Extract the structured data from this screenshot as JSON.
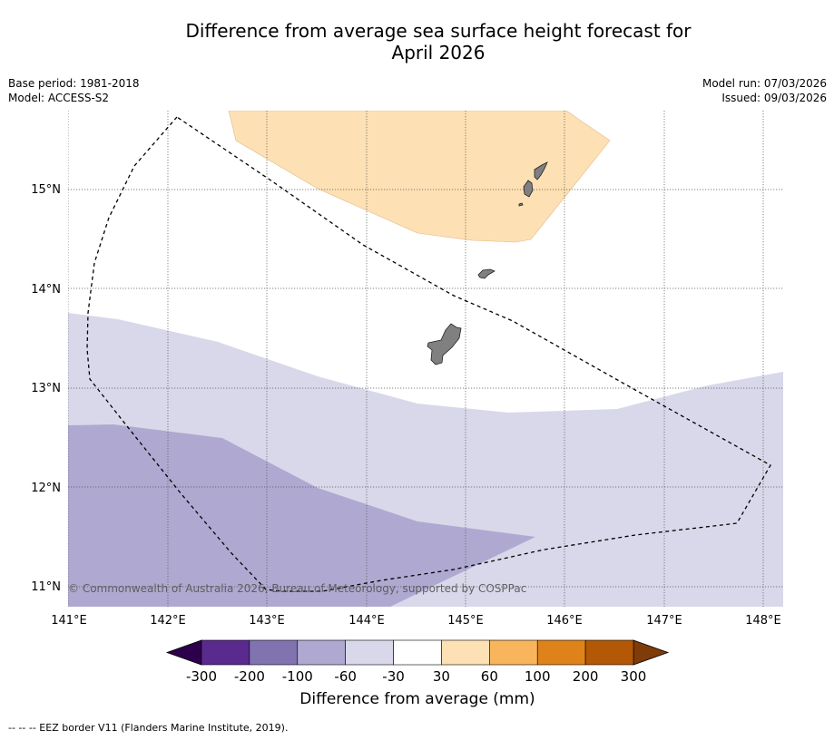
{
  "title_line1": "Difference from average sea surface height forecast for",
  "title_line2": "April 2026",
  "meta_left": {
    "base_period": "Base period: 1981-2018",
    "model": "Model: ACCESS-S2"
  },
  "meta_right": {
    "model_run": "Model run: 07/03/2026",
    "issued": "Issued: 09/03/2026"
  },
  "map": {
    "lon_labels": [
      "141°E",
      "142°E",
      "143°E",
      "144°E",
      "145°E",
      "146°E",
      "147°E",
      "148°E"
    ],
    "lat_labels": [
      "15°N",
      "14°N",
      "13°N",
      "12°N",
      "11°N"
    ],
    "copyright": "© Commonwealth of Australia 2026, Bureau of Meteorology, supported by COSPPac"
  },
  "colorbar": {
    "tick_labels": [
      "-300",
      "-200",
      "-100",
      "-60",
      "-30",
      "30",
      "60",
      "100",
      "200",
      "300"
    ],
    "colors": [
      "#5a2a8f",
      "#8173b0",
      "#afa9d1",
      "#d8d8ea",
      "#ffffff",
      "#fde0b3",
      "#f9b55c",
      "#e0821a",
      "#b35806"
    ],
    "under_color": "#2d004b",
    "over_color": "#7f3b08",
    "label": "Difference from average (mm)"
  },
  "footnote": "-- -- -- EEZ border V11 (Flanders Marine Institute, 2019)."
}
